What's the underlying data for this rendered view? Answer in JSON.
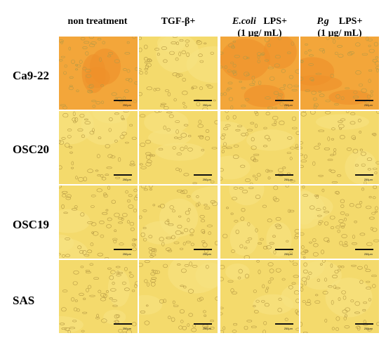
{
  "columns": [
    {
      "line1": "non treatment",
      "line2": ""
    },
    {
      "line1": "TGF-β+",
      "line2": ""
    },
    {
      "line1_em": "E.coli",
      "line1": "LPS+",
      "line2": "(1 μg/ mL)"
    },
    {
      "line1_em": "P.g",
      "line1": "LPS+",
      "line2": "(1 μg/ mL)"
    }
  ],
  "rows": [
    "Ca9-22",
    "OSC20",
    "OSC19",
    "SAS"
  ],
  "scale_label": "250μm",
  "colors": {
    "orange_bg": "#f3a63a",
    "orange_dark": "#ee8f2a",
    "yellow_bg": "#f4da6c",
    "yellow_light": "#f7e282",
    "cell_stroke": "#b79a44"
  }
}
